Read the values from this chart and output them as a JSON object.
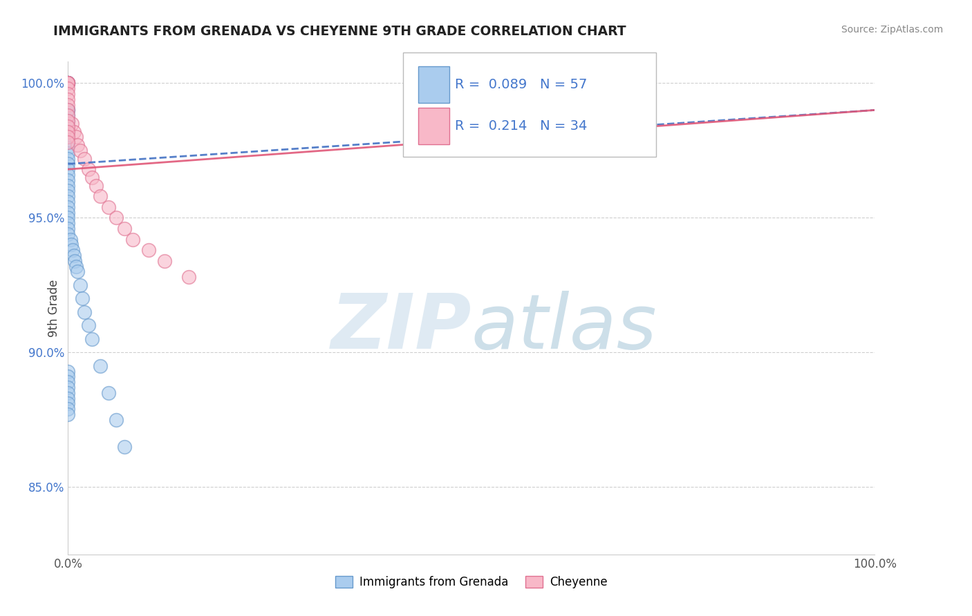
{
  "title": "IMMIGRANTS FROM GRENADA VS CHEYENNE 9TH GRADE CORRELATION CHART",
  "source": "Source: ZipAtlas.com",
  "ylabel": "9th Grade",
  "xlim": [
    0,
    1
  ],
  "ylim": [
    0.825,
    1.008
  ],
  "yticks": [
    0.85,
    0.9,
    0.95,
    1.0
  ],
  "ytick_labels": [
    "85.0%",
    "90.0%",
    "95.0%",
    "100.0%"
  ],
  "blue_scatter_x": [
    0.0,
    0.0,
    0.0,
    0.0,
    0.0,
    0.0,
    0.0,
    0.0,
    0.0,
    0.0,
    0.0,
    0.0,
    0.0,
    0.0,
    0.0,
    0.0,
    0.0,
    0.0,
    0.0,
    0.0,
    0.0,
    0.0,
    0.0,
    0.0,
    0.0,
    0.0,
    0.0,
    0.0,
    0.0,
    0.0,
    0.003,
    0.004,
    0.006,
    0.007,
    0.008,
    0.01,
    0.012,
    0.015,
    0.018,
    0.02,
    0.025,
    0.03,
    0.04,
    0.05,
    0.06,
    0.07,
    0.65,
    0.68,
    0.0,
    0.0,
    0.0,
    0.0,
    0.0,
    0.0,
    0.0,
    0.0,
    0.0
  ],
  "blue_scatter_y": [
    1.0,
    1.0,
    1.0,
    1.0,
    1.0,
    0.99,
    0.99,
    0.988,
    0.986,
    0.984,
    0.982,
    0.98,
    0.978,
    0.976,
    0.974,
    0.972,
    0.97,
    0.968,
    0.966,
    0.964,
    0.962,
    0.96,
    0.958,
    0.956,
    0.954,
    0.952,
    0.95,
    0.948,
    0.946,
    0.944,
    0.942,
    0.94,
    0.938,
    0.936,
    0.934,
    0.932,
    0.93,
    0.925,
    0.92,
    0.915,
    0.91,
    0.905,
    0.895,
    0.885,
    0.875,
    0.865,
    1.0,
    1.0,
    0.893,
    0.891,
    0.889,
    0.887,
    0.885,
    0.883,
    0.881,
    0.879,
    0.877
  ],
  "pink_scatter_x": [
    0.0,
    0.0,
    0.0,
    0.0,
    0.005,
    0.007,
    0.01,
    0.012,
    0.015,
    0.02,
    0.025,
    0.03,
    0.035,
    0.04,
    0.05,
    0.06,
    0.07,
    0.08,
    0.1,
    0.12,
    0.15,
    0.65,
    0.68,
    0.0,
    0.0,
    0.0,
    0.0,
    0.0,
    0.0,
    0.0,
    0.0,
    0.0,
    0.0,
    0.0
  ],
  "pink_scatter_y": [
    1.0,
    1.0,
    1.0,
    1.0,
    0.985,
    0.982,
    0.98,
    0.977,
    0.975,
    0.972,
    0.968,
    0.965,
    0.962,
    0.958,
    0.954,
    0.95,
    0.946,
    0.942,
    0.938,
    0.934,
    0.928,
    1.0,
    1.0,
    0.998,
    0.996,
    0.994,
    0.992,
    0.99,
    0.988,
    0.986,
    0.984,
    0.982,
    0.98,
    0.978
  ],
  "blue_line_x": [
    0.0,
    1.0
  ],
  "blue_line_y": [
    0.97,
    0.99
  ],
  "pink_line_x": [
    0.0,
    1.0
  ],
  "pink_line_y": [
    0.968,
    0.99
  ],
  "blue_line_color": "#4472c4",
  "pink_line_color": "#e05878",
  "scatter_blue_face": "#aaccee",
  "scatter_blue_edge": "#6699cc",
  "scatter_pink_face": "#f8b8c8",
  "scatter_pink_edge": "#e07090",
  "grid_color": "#bbbbbb",
  "background_color": "#ffffff",
  "title_color": "#222222",
  "axis_tick_color": "#555555",
  "ytick_color": "#4477cc",
  "source_color": "#888888",
  "legend_label1": "Immigrants from Grenada",
  "legend_label2": "Cheyenne",
  "legend_R1": "R =  0.089",
  "legend_N1": "N = 57",
  "legend_R2": "R =  0.214",
  "legend_N2": "N = 34",
  "watermark": "ZIPatlas",
  "watermark_zip_color": "#c8dff0",
  "watermark_atlas_color": "#90b8d0"
}
